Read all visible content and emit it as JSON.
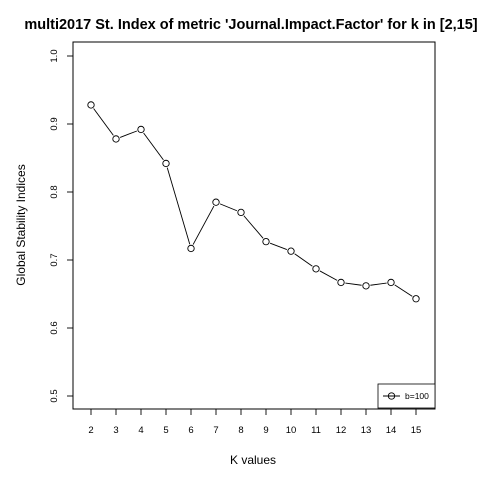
{
  "chart_data": {
    "type": "line",
    "title": "multi2017 St. Index of metric 'Journal.Impact.Factor' for k in [2,15]",
    "xlabel": "K values",
    "ylabel": "Global Stability Indices",
    "x": [
      2,
      3,
      4,
      5,
      6,
      7,
      8,
      9,
      10,
      11,
      12,
      13,
      14,
      15
    ],
    "series": [
      {
        "name": "b=100",
        "values": [
          0.928,
          0.878,
          0.892,
          0.842,
          0.717,
          0.785,
          0.77,
          0.727,
          0.713,
          0.687,
          0.667,
          0.662,
          0.667,
          0.643
        ]
      }
    ],
    "ylim": [
      0.5,
      1.0
    ],
    "yticks": [
      "0.5",
      "0.6",
      "0.7",
      "0.8",
      "0.9",
      "1.0"
    ],
    "xticks": [
      "2",
      "3",
      "4",
      "5",
      "6",
      "7",
      "8",
      "9",
      "10",
      "11",
      "12",
      "13",
      "14",
      "15"
    ],
    "grid": false,
    "legend_position": "bottom-right",
    "marker": "open-circle",
    "line_color": "#000000"
  }
}
